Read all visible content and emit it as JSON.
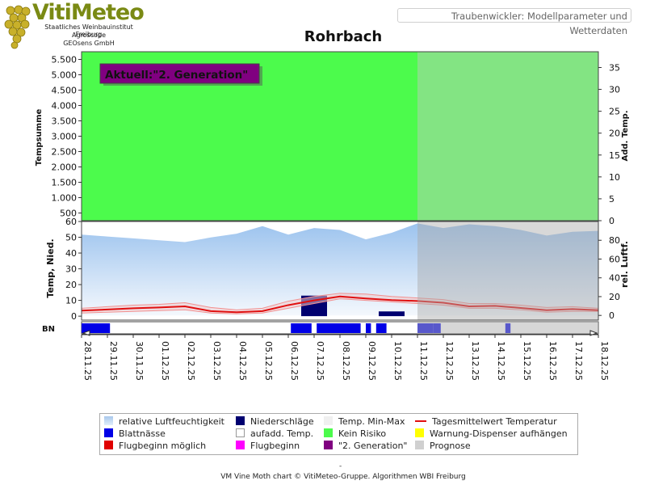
{
  "brand": {
    "name": "VitiMeteo",
    "lines": [
      "Staatliches Weinbauinstitut Freiburg",
      "Agroscope",
      "GEOsens GmbH"
    ]
  },
  "header": {
    "title": "Traubenwickler: Modellparameter und Wetterdaten"
  },
  "colors": {
    "kein_risiko": "#4cfb4c",
    "prognose_overlay": "#c8c8c8",
    "humidity": "#b8d6f4",
    "precip": "#000070",
    "leaf_wet": "#0000e6",
    "temp_line": "#e01010",
    "generation": "#800080"
  },
  "chart_data": {
    "type": "line",
    "title": "Rohrbach",
    "annotation": "Aktuell:\"2. Generation\"",
    "x": [
      "28.11.25",
      "29.11.25",
      "30.11.25",
      "01.12.25",
      "02.12.25",
      "03.12.25",
      "04.12.25",
      "05.12.25",
      "06.12.25",
      "07.12.25",
      "08.12.25",
      "09.12.25",
      "10.12.25",
      "11.12.25",
      "12.12.25",
      "13.12.25",
      "14.12.25",
      "15.12.25",
      "16.12.25",
      "17.12.25",
      "18.12.25"
    ],
    "forecast_start": "11.12.25",
    "top_panel": {
      "ylabel_left": "Tempsumme",
      "ylabel_right": "Add. Temp.",
      "yticks_left": [
        "5.500",
        "5.000",
        "4.500",
        "4.000",
        "3.500",
        "3.000",
        "2.500",
        "2.000",
        "1.500",
        "1.000",
        "500"
      ],
      "ylim_left": [
        250,
        5750
      ],
      "yticks_right": [
        0,
        5,
        10,
        15,
        20,
        25,
        30,
        35
      ],
      "ylim_right": [
        0,
        38.6
      ],
      "background_status": "Kein Risiko"
    },
    "bottom_panel": {
      "ylabel_left": "Temp, Nied.",
      "ylabel_right": "rel. Luftf.",
      "yticks_left": [
        0,
        10,
        20,
        30,
        40,
        50,
        60
      ],
      "ylim_left": [
        -2.5,
        60
      ],
      "yticks_right": [
        0,
        20,
        40,
        60,
        80
      ],
      "ylim_right": [
        -5,
        100
      ],
      "series": [
        {
          "name": "relative Luftfeuchtigkeit",
          "values": [
            86,
            84,
            82,
            80,
            78,
            83,
            87,
            95,
            86,
            93,
            91,
            81,
            88,
            98,
            93,
            97,
            95,
            91,
            85,
            89,
            90
          ]
        },
        {
          "name": "Tagesmittelwert Temperatur",
          "values": [
            3.5,
            4.2,
            5.0,
            5.5,
            6.2,
            3.2,
            2.5,
            3.2,
            7.0,
            10.0,
            12.5,
            11.2,
            10.2,
            9.6,
            8.5,
            6.2,
            6.5,
            5.2,
            3.8,
            4.5,
            3.8
          ]
        },
        {
          "name": "Temp. Min-Max",
          "min": [
            2.0,
            2.5,
            3.0,
            3.5,
            4.0,
            2.0,
            1.5,
            2.0,
            5.0,
            8.0,
            11.0,
            10.0,
            9.0,
            8.0,
            7.0,
            5.0,
            5.0,
            4.0,
            2.5,
            3.0,
            3.0
          ],
          "max": [
            5.0,
            6.0,
            7.0,
            7.5,
            8.5,
            5.5,
            4.0,
            5.0,
            9.5,
            12.5,
            14.5,
            14.0,
            12.5,
            11.5,
            10.5,
            8.0,
            8.0,
            7.0,
            5.5,
            6.0,
            5.0
          ]
        },
        {
          "name": "Niederschläge",
          "values": [
            0,
            0,
            0,
            0,
            0,
            0,
            0,
            0,
            0,
            13,
            0,
            0,
            3,
            0,
            0,
            0,
            0,
            0,
            0,
            0,
            0
          ]
        }
      ]
    },
    "bn_row": {
      "label": "BN",
      "leaf_wetness_days": [
        "28.11.25",
        "06.12.25",
        "07.12.25",
        "09.12.25",
        "11.12.25",
        "14.12.25"
      ]
    },
    "legend": [
      {
        "key": "humidity",
        "label": "relative Luftfeuchtigkeit"
      },
      {
        "key": "precip",
        "label": "Niederschläge"
      },
      {
        "key": "minmax",
        "label": "Temp. Min-Max"
      },
      {
        "key": "tmean",
        "label": "Tagesmittelwert Temperatur"
      },
      {
        "key": "leafwet",
        "label": "Blattnässe"
      },
      {
        "key": "addtemp",
        "label": "aufadd. Temp."
      },
      {
        "key": "norisk",
        "label": "Kein Risiko"
      },
      {
        "key": "dispenser",
        "label": "Warnung-Dispenser aufhängen"
      },
      {
        "key": "flightpossible",
        "label": "Flugbeginn möglich"
      },
      {
        "key": "flight",
        "label": "Flugbeginn"
      },
      {
        "key": "gen2",
        "label": "\"2. Generation\""
      },
      {
        "key": "forecast",
        "label": "Prognose"
      }
    ]
  },
  "footer": {
    "dash": "-",
    "text": "VM Vine Moth chart © VitiMeteo-Gruppe. Algorithmen WBI Freiburg"
  }
}
